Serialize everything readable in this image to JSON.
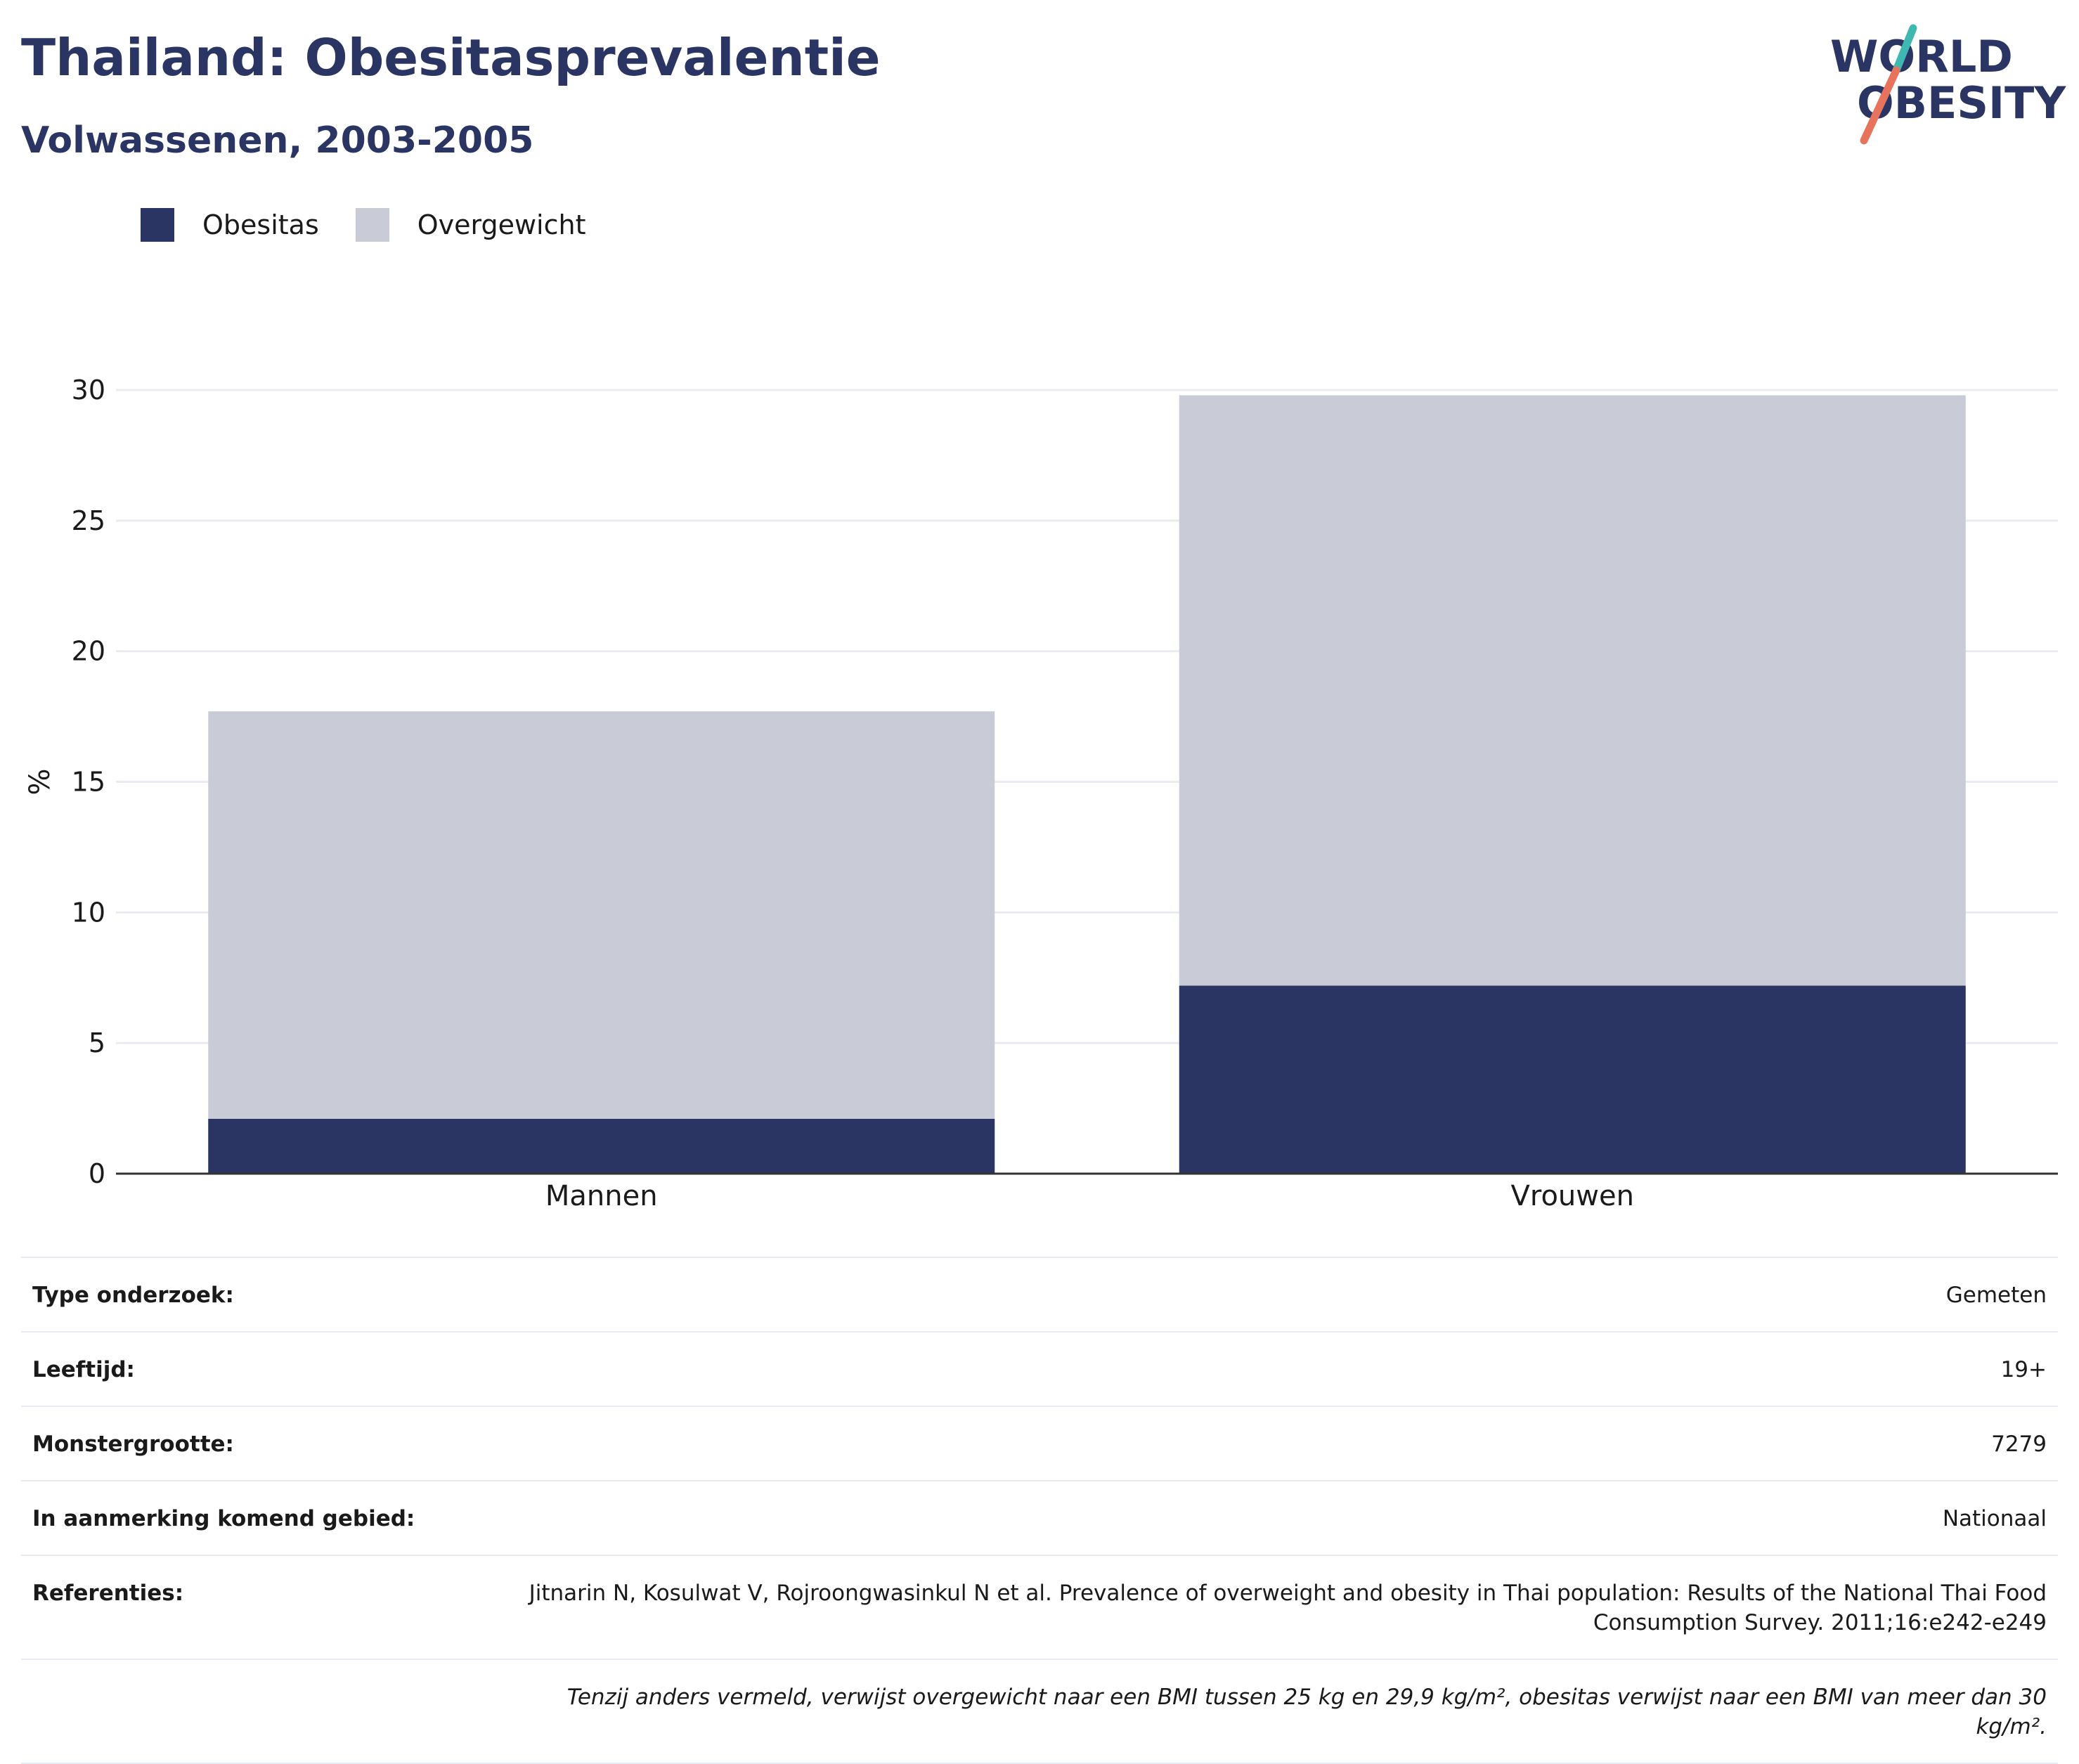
{
  "header": {
    "title": "Thailand: Obesitasprevalentie",
    "subtitle": "Volwassenen, 2003-2005",
    "logo_line1": "WORLD",
    "logo_line2": "OBESITY"
  },
  "colors": {
    "obesity": "#2a3563",
    "overweight": "#c9ccd7",
    "title": "#2a3563",
    "logo_teal": "#3fb8b2",
    "logo_coral": "#e8735d"
  },
  "chart_data": {
    "type": "bar",
    "stacked": true,
    "categories": [
      "Mannen",
      "Vrouwen"
    ],
    "series": [
      {
        "name": "Obesitas",
        "values": [
          2.1,
          7.2
        ],
        "color": "#2a3563"
      },
      {
        "name": "Overgewicht",
        "values": [
          15.6,
          22.6
        ],
        "color": "#c9ccd7"
      }
    ],
    "ylabel": "%",
    "ylim": [
      0,
      30
    ],
    "yticks": [
      0,
      5,
      10,
      15,
      20,
      25,
      30
    ],
    "grid": true,
    "legend_position": "top-left"
  },
  "meta": {
    "rows": [
      {
        "label": "Type onderzoek:",
        "value": "Gemeten"
      },
      {
        "label": "Leeftijd:",
        "value": "19+"
      },
      {
        "label": "Monstergrootte:",
        "value": "7279"
      },
      {
        "label": "In aanmerking komend gebied:",
        "value": "Nationaal"
      },
      {
        "label": "Referenties:",
        "value": "Jitnarin N, Kosulwat V, Rojroongwasinkul N et al. Prevalence of overweight and obesity in Thai population: Results of the National Thai Food Consumption Survey. 2011;16:e242-e249"
      }
    ],
    "note": "Tenzij anders vermeld, verwijst overgewicht naar een BMI tussen 25 kg en 29,9 kg/m², obesitas verwijst naar een BMI van meer dan 30 kg/m²."
  }
}
